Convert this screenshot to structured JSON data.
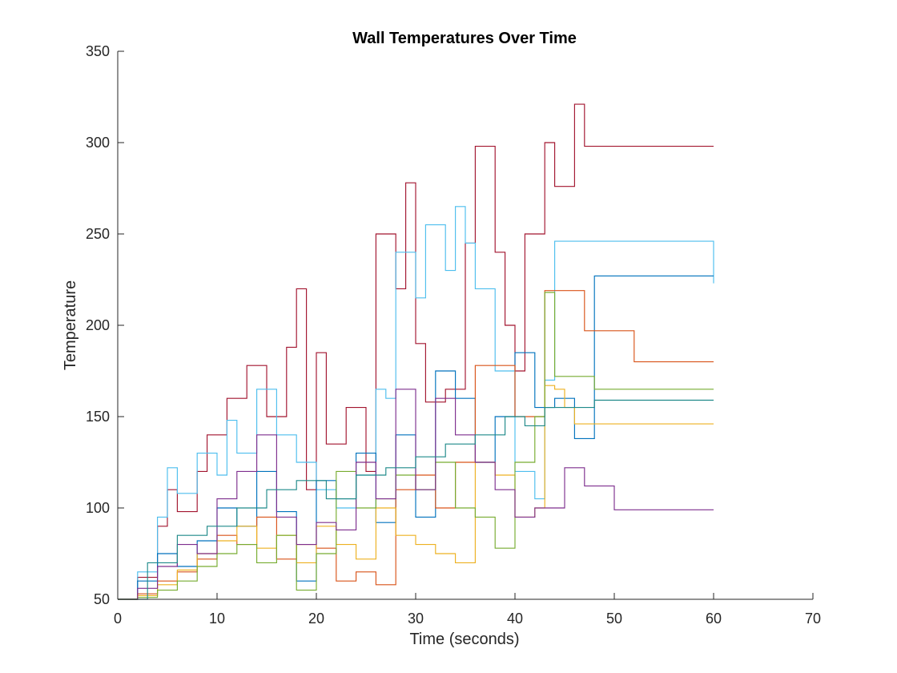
{
  "chart_data": {
    "type": "line",
    "title": "Wall Temperatures Over Time",
    "xlabel": "Time (seconds)",
    "ylabel": "Temperature",
    "xlim": [
      0,
      70
    ],
    "ylim": [
      50,
      350
    ],
    "xticks": [
      0,
      10,
      20,
      30,
      40,
      50,
      60,
      70
    ],
    "yticks": [
      50,
      100,
      150,
      200,
      250,
      300,
      350
    ],
    "grid": false,
    "legend": "none",
    "step": true,
    "series": [
      {
        "color": "#A2142F",
        "x": [
          0,
          2,
          4,
          5,
          6,
          8,
          9,
          11,
          13,
          15,
          17,
          18,
          19,
          20,
          21,
          23,
          25,
          26,
          28,
          29,
          30,
          31,
          33,
          35,
          36,
          38,
          39,
          40,
          41,
          43,
          44,
          45,
          46,
          47,
          60
        ],
        "y": [
          50,
          62,
          90,
          110,
          98,
          120,
          140,
          160,
          178,
          150,
          188,
          220,
          110,
          185,
          135,
          155,
          120,
          250,
          220,
          278,
          190,
          158,
          165,
          245,
          298,
          240,
          200,
          175,
          250,
          300,
          276,
          276,
          321,
          298,
          298
        ]
      },
      {
        "color": "#4DBEEE",
        "x": [
          0,
          2,
          4,
          5,
          6,
          8,
          10,
          11,
          12,
          14,
          16,
          18,
          20,
          22,
          24,
          26,
          27,
          28,
          30,
          31,
          33,
          34,
          35,
          36,
          38,
          40,
          42,
          43,
          44,
          60
        ],
        "y": [
          50,
          65,
          95,
          122,
          108,
          130,
          118,
          148,
          130,
          165,
          140,
          125,
          110,
          100,
          118,
          165,
          160,
          240,
          215,
          255,
          230,
          265,
          245,
          220,
          175,
          120,
          105,
          170,
          246,
          223
        ]
      },
      {
        "color": "#0072BD",
        "x": [
          0,
          2,
          4,
          6,
          8,
          10,
          12,
          14,
          16,
          18,
          20,
          22,
          24,
          26,
          28,
          30,
          32,
          34,
          36,
          38,
          40,
          42,
          44,
          46,
          47,
          48,
          60
        ],
        "y": [
          50,
          60,
          75,
          68,
          82,
          100,
          90,
          120,
          98,
          60,
          115,
          105,
          130,
          92,
          140,
          95,
          175,
          160,
          125,
          150,
          185,
          155,
          160,
          138,
          138,
          227,
          227
        ]
      },
      {
        "color": "#D95319",
        "x": [
          0,
          2,
          4,
          6,
          8,
          10,
          12,
          14,
          16,
          18,
          20,
          22,
          24,
          26,
          28,
          30,
          32,
          34,
          36,
          38,
          40,
          42,
          43,
          45,
          47,
          50,
          52,
          60
        ],
        "y": [
          50,
          53,
          60,
          65,
          72,
          85,
          80,
          95,
          72,
          80,
          78,
          60,
          65,
          58,
          110,
          118,
          100,
          125,
          178,
          178,
          150,
          150,
          219,
          219,
          197,
          197,
          180,
          180
        ]
      },
      {
        "color": "#EDB120",
        "x": [
          0,
          2,
          4,
          6,
          8,
          10,
          12,
          14,
          16,
          18,
          20,
          22,
          24,
          26,
          28,
          30,
          32,
          34,
          36,
          38,
          40,
          42,
          43,
          44,
          45,
          46,
          60
        ],
        "y": [
          50,
          52,
          58,
          66,
          75,
          82,
          90,
          78,
          85,
          70,
          90,
          80,
          72,
          100,
          85,
          80,
          75,
          70,
          125,
          118,
          95,
          100,
          167,
          165,
          155,
          146,
          146
        ]
      },
      {
        "color": "#77AC30",
        "x": [
          0,
          2,
          4,
          6,
          8,
          10,
          12,
          14,
          16,
          18,
          20,
          22,
          24,
          26,
          28,
          30,
          32,
          34,
          36,
          38,
          40,
          42,
          43,
          44,
          48,
          60
        ],
        "y": [
          50,
          51,
          55,
          60,
          68,
          75,
          80,
          70,
          85,
          55,
          75,
          120,
          100,
          105,
          118,
          110,
          125,
          100,
          95,
          78,
          125,
          150,
          218,
          172,
          165,
          165
        ]
      },
      {
        "color": "#7E2F8E",
        "x": [
          0,
          2,
          4,
          6,
          8,
          10,
          12,
          14,
          16,
          18,
          20,
          22,
          24,
          26,
          28,
          30,
          32,
          34,
          36,
          38,
          40,
          42,
          45,
          47,
          50,
          60
        ],
        "y": [
          50,
          56,
          68,
          80,
          75,
          105,
          120,
          140,
          95,
          80,
          92,
          88,
          125,
          105,
          165,
          110,
          160,
          140,
          125,
          110,
          95,
          100,
          122,
          112,
          99,
          99
        ]
      },
      {
        "color": "#1F8A8A",
        "x": [
          0,
          3,
          6,
          9,
          12,
          15,
          18,
          21,
          24,
          27,
          30,
          33,
          36,
          39,
          41,
          43,
          48,
          60
        ],
        "y": [
          50,
          70,
          85,
          90,
          100,
          110,
          115,
          105,
          118,
          122,
          128,
          135,
          140,
          150,
          145,
          155,
          159,
          159
        ]
      }
    ]
  }
}
